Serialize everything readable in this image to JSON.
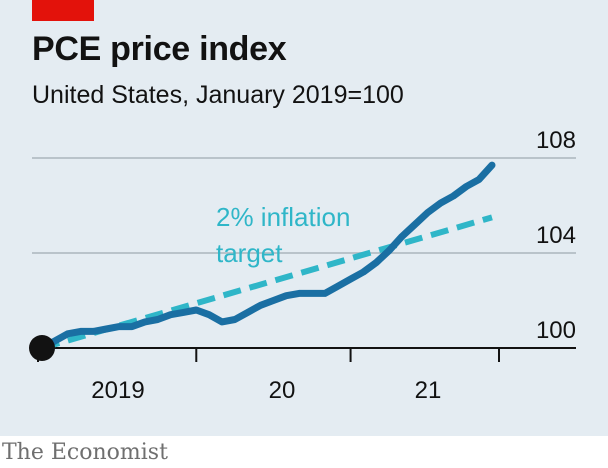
{
  "header": {
    "title": "PCE price index",
    "subtitle": "United States, January 2019=100"
  },
  "footer": {
    "source": "The Economist"
  },
  "colors": {
    "series": "#1a6fa3",
    "target": "#2fb6c8",
    "grid": "#b9c3ca",
    "text": "#121212",
    "accent": "#e3120b"
  },
  "chart_data": {
    "type": "line",
    "title": "PCE price index",
    "subtitle": "United States, January 2019=100",
    "y_range": [
      100,
      108
    ],
    "y_ticks": [
      "100",
      "104",
      "108"
    ],
    "x_tick_labels": [
      "2019",
      "20",
      "21"
    ],
    "y_axis_side": "right",
    "grid": "horizontal",
    "annotation": {
      "line1": "2% inflation",
      "line2": "target"
    },
    "series": [
      {
        "name": "",
        "x": [
          0,
          1,
          2,
          3,
          4,
          5,
          6,
          7,
          8,
          9,
          10,
          11,
          12,
          13,
          14,
          15,
          16,
          17,
          18,
          19,
          20,
          21,
          22,
          23,
          24,
          25,
          26,
          27,
          28,
          29,
          30,
          31,
          32,
          33,
          34,
          35
        ],
        "values": [
          100.0,
          100.3,
          100.6,
          100.7,
          100.7,
          100.8,
          100.9,
          100.9,
          101.1,
          101.2,
          101.4,
          101.5,
          101.6,
          101.4,
          101.1,
          101.2,
          101.5,
          101.8,
          102.0,
          102.2,
          102.3,
          102.3,
          102.3,
          102.6,
          102.9,
          103.2,
          103.6,
          104.1,
          104.7,
          105.2,
          105.7,
          106.1,
          106.4,
          106.8,
          107.1,
          107.7
        ]
      }
    ],
    "target_series": {
      "x": [
        0,
        35
      ],
      "values": [
        100.0,
        105.5
      ]
    }
  }
}
